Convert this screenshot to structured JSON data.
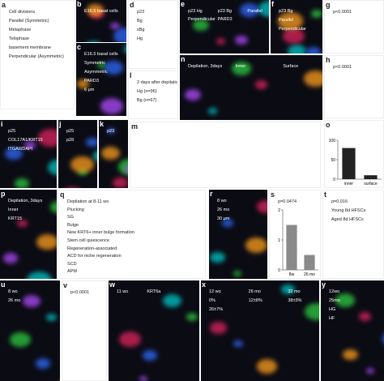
{
  "figure": {
    "panels": [
      {
        "label": "a",
        "texts": [
          "Cell divisions",
          "Parallel (Symmetric)",
          "Metaphase",
          "Telophase",
          "basement membrane",
          "Perpendicular (Asymmetric)"
        ]
      },
      {
        "label": "b",
        "texts": [
          "E16.5 basal cells"
        ]
      },
      {
        "label": "c",
        "texts": [
          "E16.5 basal cells",
          "Symmetric",
          "Asymmetric",
          "PARD3",
          "6 μm"
        ]
      },
      {
        "label": "d",
        "texts": [
          "p23",
          "Bg",
          "sBg",
          "Hg"
        ]
      },
      {
        "label": "e",
        "texts": [
          "p23 Hg",
          "p23 Bg",
          "Parallel",
          "Perpendicular",
          "PARD3"
        ]
      },
      {
        "label": "f",
        "texts": [
          "p23 Bg",
          "Parallel",
          "Perpendicular"
        ]
      },
      {
        "label": "g",
        "texts": [
          "p<0.0001"
        ]
      },
      {
        "label": "h",
        "texts": [
          "p<0.0001"
        ]
      },
      {
        "label": "l",
        "texts": [
          "2 days after depilation",
          "Hg (n=96)",
          "Bg (n=67)"
        ]
      },
      {
        "label": "n",
        "texts": [
          "Depilation, 3days",
          "Inner",
          "Surface"
        ]
      },
      {
        "label": "i",
        "texts": [
          "p25",
          "COL17A1/KRT15",
          "ITGA6/DAPI"
        ]
      },
      {
        "label": "j",
        "texts": [
          "p25",
          "p28"
        ]
      },
      {
        "label": "k",
        "texts": [
          "p23"
        ]
      },
      {
        "label": "m",
        "texts": []
      },
      {
        "label": "o",
        "texts": []
      },
      {
        "label": "p",
        "texts": [
          "Depilation, 3days",
          "Inner",
          "KRT15"
        ]
      },
      {
        "label": "q",
        "texts": [
          "Depilation at 8-11 wo",
          "Plucking",
          "SG",
          "Bulge",
          "New KRT6+ inner bulge formation",
          "Stem cell quiescence",
          "Regeneration-associated",
          "ACD for niche regeneration",
          "SCD",
          "APM"
        ]
      },
      {
        "label": "r",
        "texts": [
          "8 wo",
          "26 mo",
          "30 μm"
        ]
      },
      {
        "label": "s",
        "texts": [
          "p=0.0474"
        ]
      },
      {
        "label": "t",
        "texts": [
          "p=0.016",
          "Young 8d HFSCs",
          "Aged 8d HFSCs"
        ]
      },
      {
        "label": "u",
        "texts": [
          "8 wo",
          "26 mo"
        ]
      },
      {
        "label": "v",
        "texts": [
          "p<0.0001"
        ]
      },
      {
        "label": "w",
        "texts": [
          "11 wo",
          "KRT6a"
        ]
      },
      {
        "label": "x",
        "texts": [
          "12 wo",
          "26 mo",
          "32 mo",
          "0%",
          "12±8%",
          "38±3%",
          "26±7%"
        ]
      },
      {
        "label": "y",
        "texts": [
          "12wo",
          "25mo",
          "HG",
          "HF"
        ]
      }
    ]
  },
  "chart_data": [
    {
      "type": "bar",
      "categories": [
        "inner",
        "surface"
      ],
      "values": [
        80,
        10
      ],
      "color": "#222222",
      "ylim": [
        0,
        100
      ],
      "yticks": [
        0,
        50,
        100
      ]
    },
    {
      "type": "bar",
      "categories": [
        "8w",
        "26 mo"
      ],
      "values": [
        1.5,
        0.5
      ],
      "color": "#8a8a8a",
      "ylim": [
        0,
        2
      ],
      "yticks": [
        0,
        1,
        2
      ]
    }
  ]
}
